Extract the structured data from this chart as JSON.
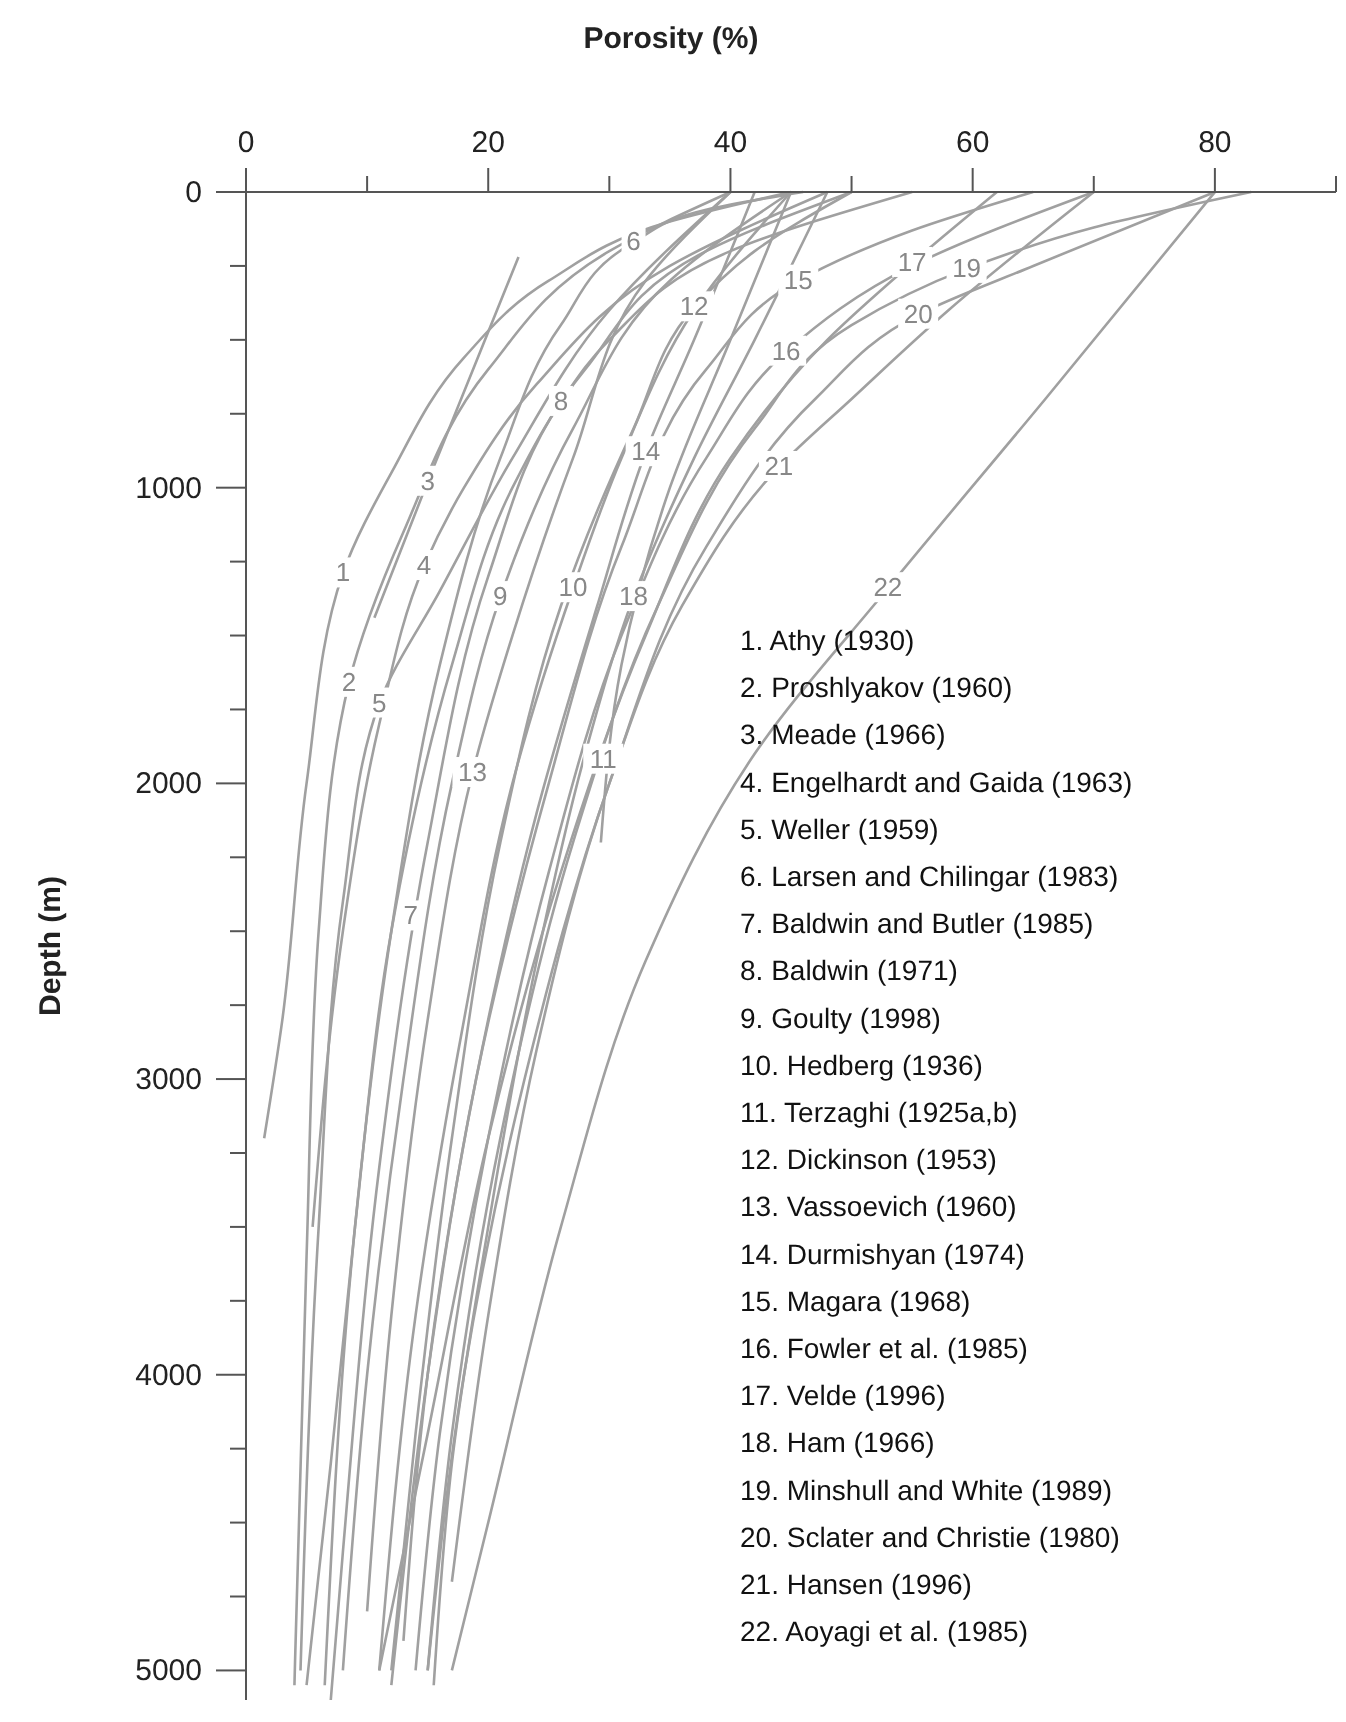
{
  "chart_data": {
    "type": "line",
    "xlabel": "Porosity (%)",
    "ylabel": "Depth (m)",
    "xlim": [
      0,
      90
    ],
    "ylim": [
      5100,
      0
    ],
    "xticks": [
      0,
      {
        "value": 10,
        "label": null
      },
      20,
      {
        "value": 30,
        "label": null
      },
      40,
      {
        "value": 50,
        "label": null
      },
      60,
      {
        "value": 70,
        "label": null
      },
      80,
      {
        "value": 90,
        "label": null
      }
    ],
    "yticks": [
      0,
      {
        "value": 250,
        "label": null
      },
      {
        "value": 500,
        "label": null
      },
      {
        "value": 750,
        "label": null
      },
      1000,
      {
        "value": 1250,
        "label": null
      },
      {
        "value": 1500,
        "label": null
      },
      {
        "value": 1750,
        "label": null
      },
      2000,
      {
        "value": 2250,
        "label": null
      },
      {
        "value": 2500,
        "label": null
      },
      {
        "value": 2750,
        "label": null
      },
      3000,
      {
        "value": 3250,
        "label": null
      },
      {
        "value": 3500,
        "label": null
      },
      {
        "value": 3750,
        "label": null
      },
      4000,
      {
        "value": 4250,
        "label": null
      },
      {
        "value": 4500,
        "label": null
      },
      {
        "value": 4750,
        "label": null
      },
      5000
    ],
    "grid": false,
    "marker": "none",
    "line_style": "solid",
    "series": [
      {
        "color": "#a0a0a0",
        "x": [
          45,
          35,
          25,
          18,
          12,
          8,
          5,
          3,
          1.5
        ],
        "values": [
          0,
          100,
          300,
          560,
          950,
          1290,
          2000,
          2800,
          3200
        ]
      },
      {
        "color": "#a0a0a0",
        "x": [
          40,
          30,
          20,
          13,
          8.5,
          6,
          5,
          4
        ],
        "values": [
          0,
          200,
          600,
          1150,
          1660,
          2500,
          3600,
          5050
        ]
      },
      {
        "color": "#a0a0a0",
        "x": [
          22.5,
          15,
          10.6
        ],
        "values": [
          220,
          980,
          1440
        ]
      },
      {
        "color": "#a0a0a0",
        "x": [
          48,
          35,
          24,
          18,
          14.7,
          11,
          8,
          5.5
        ],
        "values": [
          0,
          250,
          650,
          1000,
          1265,
          1800,
          2500,
          3500
        ]
      },
      {
        "color": "#a0a0a0",
        "x": [
          40,
          30,
          22,
          16,
          11,
          8,
          6,
          4.5
        ],
        "values": [
          0,
          400,
          900,
          1350,
          1730,
          2400,
          3500,
          5000
        ]
      },
      {
        "color": "#a0a0a0",
        "x": [
          46,
          38,
          32,
          26,
          21,
          16,
          12,
          9,
          6.5
        ],
        "values": [
          0,
          60,
          170,
          450,
          900,
          1600,
          2500,
          3500,
          5050
        ]
      },
      {
        "color": "#a0a0a0",
        "x": [
          50,
          38,
          28,
          22,
          17,
          12,
          9,
          7,
          5
        ],
        "values": [
          0,
          200,
          600,
          1000,
          1600,
          2500,
          3500,
          4300,
          5050
        ]
      },
      {
        "color": "#a0a0a0",
        "x": [
          55,
          40,
          30,
          26,
          20,
          15,
          11,
          8,
          7
        ],
        "values": [
          0,
          200,
          500,
          710,
          1300,
          2200,
          3300,
          4600,
          5100
        ]
      },
      {
        "color": "#a0a0a0",
        "x": [
          45,
          35,
          27,
          21,
          17,
          13,
          10,
          8
        ],
        "values": [
          0,
          300,
          800,
          1370,
          2000,
          3000,
          4000,
          5000
        ]
      },
      {
        "color": "#a0a0a0",
        "x": [
          45,
          37,
          31,
          27,
          22,
          18,
          14,
          11
        ],
        "values": [
          0,
          400,
          900,
          1340,
          2000,
          2800,
          3800,
          5000
        ]
      },
      {
        "color": "#a0a0a0",
        "x": [
          45,
          40,
          35,
          31,
          29.3
        ],
        "values": [
          0,
          500,
          1000,
          1600,
          2200
        ]
      },
      {
        "color": "#a0a0a0",
        "x": [
          50,
          42,
          37,
          32,
          26,
          21,
          17,
          14,
          12
        ],
        "values": [
          0,
          200,
          390,
          800,
          1400,
          2200,
          3200,
          4200,
          5000
        ]
      },
      {
        "color": "#a0a0a0",
        "x": [
          40,
          33,
          27,
          22,
          18.7,
          15,
          12,
          10
        ],
        "values": [
          0,
          300,
          900,
          1500,
          1965,
          2800,
          3800,
          4800
        ]
      },
      {
        "color": "#a0a0a0",
        "x": [
          42,
          37,
          33,
          29,
          24,
          19,
          15,
          13
        ],
        "values": [
          0,
          500,
          880,
          1400,
          2100,
          3000,
          4000,
          4900
        ]
      },
      {
        "color": "#a0a0a0",
        "x": [
          65,
          55,
          45.6,
          38,
          31,
          25,
          19,
          15,
          12
        ],
        "values": [
          0,
          130,
          300,
          600,
          1200,
          2000,
          3000,
          4000,
          5050
        ]
      },
      {
        "color": "#a0a0a0",
        "x": [
          70,
          55,
          44.6,
          38,
          31,
          25,
          20,
          16,
          14
        ],
        "values": [
          0,
          250,
          540,
          900,
          1500,
          2300,
          3200,
          4200,
          5000
        ]
      },
      {
        "color": "#a0a0a0",
        "x": [
          62,
          55,
          48,
          40,
          33,
          26,
          20,
          15,
          11
        ],
        "values": [
          0,
          240,
          500,
          900,
          1500,
          2300,
          3200,
          4200,
          5000
        ]
      },
      {
        "color": "#a0a0a0",
        "x": [
          48,
          42,
          37,
          32,
          28,
          24,
          20,
          17,
          15.5
        ],
        "values": [
          0,
          500,
          900,
          1370,
          1900,
          2600,
          3500,
          4300,
          5050
        ]
      },
      {
        "color": "#a0a0a0",
        "x": [
          83,
          70,
          59.5,
          50,
          42,
          34,
          27,
          21,
          17,
          15
        ],
        "values": [
          0,
          120,
          260,
          450,
          800,
          1400,
          2200,
          3200,
          4200,
          5000
        ]
      },
      {
        "color": "#a0a0a0",
        "x": [
          80,
          65,
          55.5,
          47,
          38,
          30,
          23,
          18,
          15
        ],
        "values": [
          0,
          250,
          415,
          700,
          1200,
          2000,
          3000,
          4000,
          5000
        ]
      },
      {
        "color": "#a0a0a0",
        "x": [
          70,
          58,
          50,
          44,
          36,
          30,
          24,
          20,
          17
        ],
        "values": [
          0,
          400,
          700,
          930,
          1400,
          2000,
          2900,
          3800,
          4700
        ]
      },
      {
        "color": "#a0a0a0",
        "x": [
          80,
          66,
          53,
          42,
          33,
          26,
          20,
          17
        ],
        "values": [
          0,
          700,
          1340,
          1900,
          2600,
          3500,
          4500,
          5000
        ]
      }
    ],
    "annotations": [
      {
        "text": "1",
        "x": 8,
        "y": 1290
      },
      {
        "text": "2",
        "x": 8.5,
        "y": 1660
      },
      {
        "text": "3",
        "x": 15,
        "y": 980
      },
      {
        "text": "4",
        "x": 14.7,
        "y": 1265
      },
      {
        "text": "5",
        "x": 11,
        "y": 1730
      },
      {
        "text": "6",
        "x": 32,
        "y": 170
      },
      {
        "text": "7",
        "x": 13.6,
        "y": 2450
      },
      {
        "text": "8",
        "x": 26,
        "y": 710
      },
      {
        "text": "9",
        "x": 21,
        "y": 1370
      },
      {
        "text": "10",
        "x": 27,
        "y": 1340
      },
      {
        "text": "11",
        "x": 29.5,
        "y": 1920
      },
      {
        "text": "12",
        "x": 37,
        "y": 390
      },
      {
        "text": "13",
        "x": 18.7,
        "y": 1965
      },
      {
        "text": "14",
        "x": 33,
        "y": 880
      },
      {
        "text": "15",
        "x": 45.6,
        "y": 300
      },
      {
        "text": "16",
        "x": 44.6,
        "y": 540
      },
      {
        "text": "17",
        "x": 55,
        "y": 240
      },
      {
        "text": "18",
        "x": 32,
        "y": 1370
      },
      {
        "text": "19",
        "x": 59.5,
        "y": 260
      },
      {
        "text": "20",
        "x": 55.5,
        "y": 415
      },
      {
        "text": "21",
        "x": 44,
        "y": 930
      },
      {
        "text": "22",
        "x": 53,
        "y": 1340
      },
      "1. Athy (1930)",
      "2. Proshlyakov (1960)",
      "3. Meade (1966)",
      "4. Engelhardt and Gaida (1963)",
      "5. Weller (1959)",
      "6. Larsen and Chilingar (1983)",
      "7. Baldwin and Butler (1985)",
      "8. Baldwin (1971)",
      "9. Goulty (1998)",
      "10. Hedberg (1936)",
      "11. Terzaghi (1925a,b)",
      "12. Dickinson (1953)",
      "13. Vassoevich (1960)",
      "14. Durmishyan (1974)",
      "15. Magara (1968)",
      "16. Fowler et al. (1985)",
      "17. Velde (1996)",
      "18. Ham (1966)",
      "19. Minshull and White (1989)",
      "20. Sclater and Christie (1980)",
      "21. Hansen (1996)",
      "22. Aoyagi et al. (1985)"
    ]
  }
}
